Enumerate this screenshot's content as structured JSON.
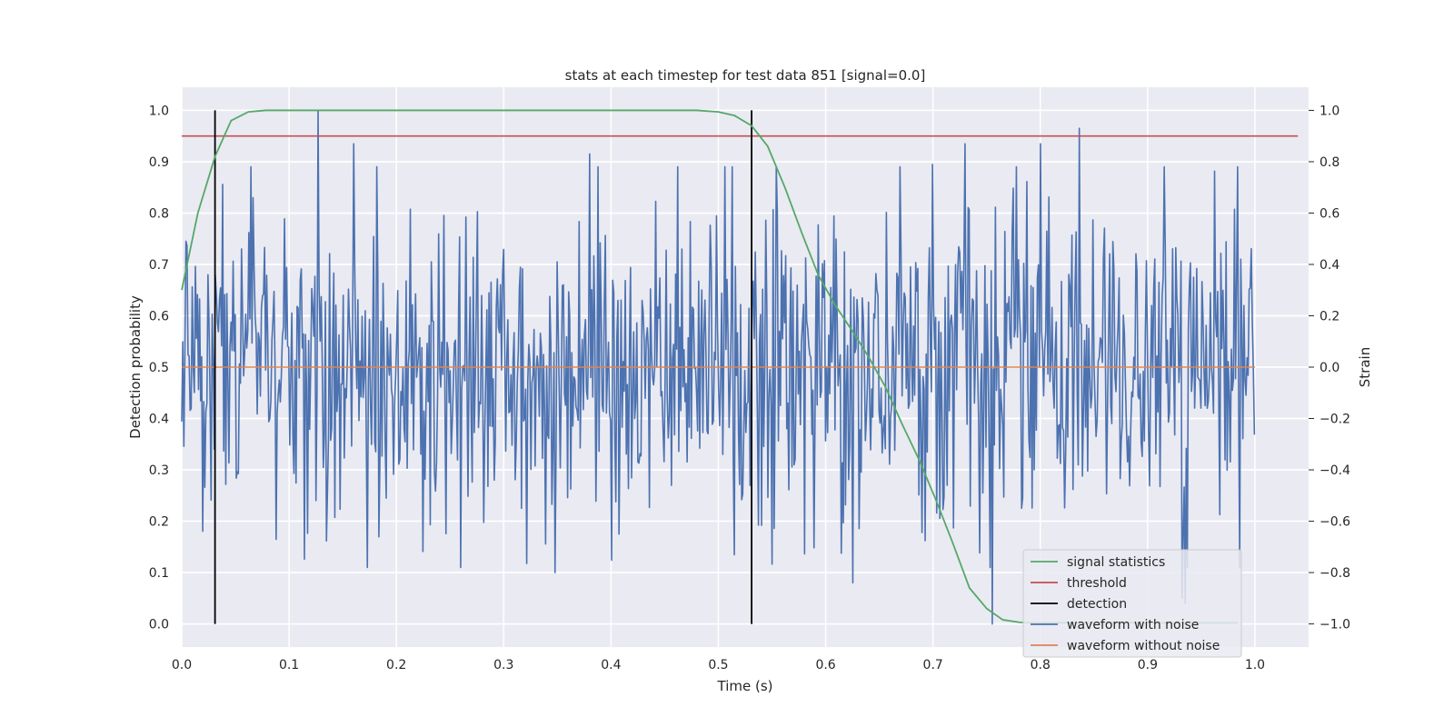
{
  "chart_data": {
    "type": "line",
    "title": "stats at each timestep for test data 851 [signal=0.0]",
    "xlabel": "Time (s)",
    "ylabel": "Detection probability",
    "y2label": "Strain",
    "xlim": [
      0.0,
      1.05
    ],
    "ylim": [
      -0.045,
      1.045
    ],
    "y2lim": [
      -1.09,
      1.09
    ],
    "x_ticks": [
      "0.0",
      "0.1",
      "0.2",
      "0.3",
      "0.4",
      "0.5",
      "0.6",
      "0.7",
      "0.8",
      "0.9",
      "1.0"
    ],
    "y_ticks": [
      "0.0",
      "0.1",
      "0.2",
      "0.3",
      "0.4",
      "0.5",
      "0.6",
      "0.7",
      "0.8",
      "0.9",
      "1.0"
    ],
    "y2_ticks": [
      "−1.0",
      "−0.8",
      "−0.6",
      "−0.4",
      "−0.2",
      "0.0",
      "0.2",
      "0.4",
      "0.6",
      "0.8",
      "1.0"
    ],
    "grid": true,
    "legend_position": "lower-right",
    "series": [
      {
        "name": "signal statistics",
        "axis": "left",
        "color": "#55a868",
        "x": [
          0.0,
          0.015,
          0.031,
          0.046,
          0.062,
          0.078,
          0.1,
          0.2,
          0.3,
          0.4,
          0.48,
          0.5,
          0.515,
          0.531,
          0.546,
          0.562,
          0.578,
          0.593,
          0.609,
          0.625,
          0.64,
          0.656,
          0.671,
          0.687,
          0.703,
          0.718,
          0.734,
          0.75,
          0.765,
          0.781,
          0.8,
          0.85,
          0.9,
          0.95,
          0.984
        ],
        "y": [
          0.65,
          0.8,
          0.91,
          0.98,
          0.997,
          1.0,
          1.0,
          1.0,
          1.0,
          1.0,
          1.0,
          0.997,
          0.99,
          0.97,
          0.93,
          0.85,
          0.76,
          0.68,
          0.62,
          0.57,
          0.52,
          0.46,
          0.39,
          0.32,
          0.24,
          0.16,
          0.07,
          0.03,
          0.008,
          0.003,
          0.002,
          0.002,
          0.002,
          0.002,
          0.002
        ]
      },
      {
        "name": "threshold",
        "axis": "left",
        "color": "#c44e52",
        "x": [
          0.0,
          1.04
        ],
        "y": [
          0.95,
          0.95
        ]
      },
      {
        "name": "detection",
        "axis": "left",
        "color": "#000000",
        "x": [
          0.031,
          0.531
        ],
        "y_range": [
          0.0,
          1.0
        ]
      },
      {
        "name": "waveform with noise",
        "axis": "right",
        "color": "#4c72b0",
        "x_range": [
          0.0,
          0.9995
        ],
        "points": 1024,
        "y_peaks": [
          {
            "x": 0.127,
            "y": 1.0
          },
          {
            "x": 0.16,
            "y": 0.87
          },
          {
            "x": 0.38,
            "y": 0.83
          },
          {
            "x": 0.7,
            "y": 0.79
          },
          {
            "x": 0.73,
            "y": 0.87
          },
          {
            "x": 0.8,
            "y": 0.87
          },
          {
            "x": 0.836,
            "y": 0.93
          }
        ],
        "y_troughs": [
          {
            "x": 0.348,
            "y": -0.8
          },
          {
            "x": 0.625,
            "y": -0.84
          },
          {
            "x": 0.755,
            "y": -1.0
          },
          {
            "x": 0.932,
            "y": -0.9
          },
          {
            "x": 0.935,
            "y": -0.92
          }
        ]
      },
      {
        "name": "waveform without noise",
        "axis": "right",
        "color": "#dd8452",
        "x": [
          0.0,
          1.0
        ],
        "y": [
          0.0,
          0.0
        ]
      }
    ],
    "legend": [
      "signal statistics",
      "threshold",
      "detection",
      "waveform with noise",
      "waveform without noise"
    ]
  }
}
